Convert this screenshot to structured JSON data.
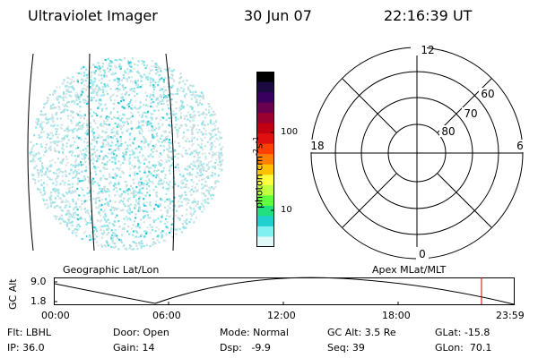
{
  "header": {
    "instrument": "Ultraviolet Imager",
    "date": "30 Jun 07",
    "time": "22:16:39 UT"
  },
  "colorbar": {
    "unit_label": "photon cm",
    "exp1": "-2",
    "unit_s": "s",
    "exp2": "-1",
    "ticks": [
      "100",
      "10"
    ],
    "colors": [
      "#000000",
      "#1a0a40",
      "#3a0060",
      "#6a0050",
      "#9a0030",
      "#c00010",
      "#e01010",
      "#ff4000",
      "#ff8000",
      "#ffc000",
      "#ffff40",
      "#c0ff40",
      "#60ff40",
      "#20e080",
      "#20d0d0",
      "#80f0f0",
      "#e0f8f8"
    ]
  },
  "polar": {
    "top_label": "12",
    "left_label": "18",
    "right_label": "6",
    "bottom_label": "0",
    "lat_labels": [
      "60",
      "70",
      "80"
    ]
  },
  "timeline": {
    "left_title": "Geographic Lat/Lon",
    "right_title": "Apex MLat/MLT",
    "ylabel": "GC Alt",
    "ytick_top": "9.0",
    "ytick_bottom": "1.8",
    "xticks": [
      "00:00",
      "06:00",
      "12:00",
      "18:00",
      "23:59"
    ],
    "marker_color": "#d00000"
  },
  "status": {
    "flt": "Flt: LBHL",
    "ip": "IP: 36.0",
    "door": "Door: Open",
    "gain": "Gain: 14",
    "mode": "Mode: Normal",
    "dsp": "Dsp:   -9.9",
    "gcalt": "GC Alt: 3.5 Re",
    "seq": "Seq: 39",
    "glat": "GLat: -15.8",
    "glon": "GLon:  70.1"
  }
}
